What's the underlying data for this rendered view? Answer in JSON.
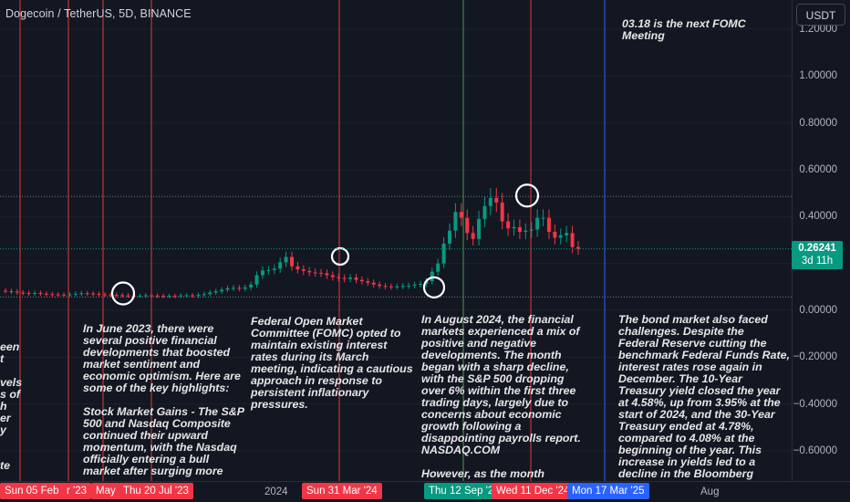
{
  "chart_title": "Dogecoin / TetherUS, 5D, BINANCE",
  "currency_button": "USDT",
  "last_price": {
    "value": "0.26241",
    "countdown": "3d 11h",
    "color": "#089981"
  },
  "colors": {
    "background": "#131722",
    "up": "#089981",
    "down": "#f23645",
    "red_line": "#e53935",
    "green_line": "#43a047",
    "blue_line": "#2962ff",
    "text": "#b2b5be"
  },
  "notes": [
    {
      "id": "fomc-next",
      "text": "03.18 is the next FOMC\nMeeting"
    },
    {
      "id": "june-2023",
      "text": "In June 2023, there were\nseveral positive financial\ndevelopments that boosted\nmarket sentiment and\neconomic optimism. Here are\nsome of the key highlights:\n\nStock Market Gains - The S&P\n500 and Nasdaq Composite\ncontinued their upward\nmomentum, with the Nasdaq\nofficially entering a bull\nmarket after surging more"
    },
    {
      "id": "march-fomc",
      "text": "Federal Open Market\nCommittee (FOMC) opted to\nmaintain existing interest\nrates during its March\nmeeting, indicating a cautious\napproach in response to\npersistent inflationary\npressures."
    },
    {
      "id": "august-2024",
      "text": "In August 2024, the financial\nmarkets experienced a mix of\npositive and negative\ndevelopments. The month\nbegan with a sharp decline,\nwith the S&P 500 dropping\nover 6% within the first three\ntrading days, largely due to\nconcerns about economic\ngrowth following a\ndisappointing payrolls report.\nNASDAQ.COM\n\nHowever, as the month"
    },
    {
      "id": "bond-market",
      "text": "The bond market also faced\nchallenges. Despite the\nFederal Reserve cutting the\nbenchmark Federal Funds Rate,\ninterest rates rose again in\nDecember. The 10-Year\nTreasury yield closed the year\nat 4.58%, up from 3.95% at the\nstart of 2024, and the 30-Year\nTreasury ended at 4.78%,\ncompared to 4.08% at the\nbeginning of the year. This\nincrease in yields led to a\ndecline in the Bloomberg"
    },
    {
      "id": "left-clipped",
      "text": "een\nt\n\nvels\ns of\nh\ner\ny\n\n\nte"
    }
  ],
  "chart_data": {
    "type": "candlestick",
    "title": "Dogecoin / TetherUS, 5D, BINANCE",
    "y_ticks": [
      "1.20000",
      "1.00000",
      "0.80000",
      "0.60000",
      "0.40000",
      "0.20000",
      "0.00000",
      "−0.20000",
      "−0.40000",
      "−0.60000"
    ],
    "y_tick_values": [
      1.2,
      1.0,
      0.8,
      0.6,
      0.4,
      0.2,
      0.0,
      -0.2,
      -0.4,
      -0.6
    ],
    "ylim": [
      -0.72,
      1.24
    ],
    "x_ticks": [
      "2024",
      "Aug"
    ],
    "date_labels": [
      {
        "text": "Sun 05 Feb '23",
        "color": "#f23645"
      },
      {
        "text": "r '23",
        "color": "#f23645"
      },
      {
        "text": "May",
        "color": "#f23645"
      },
      {
        "text": "Thu 20 Jul '23",
        "color": "#f23645"
      },
      {
        "text": "Sun 31 Mar '24",
        "color": "#f23645"
      },
      {
        "text": "Thu 12 Sep '2",
        "color": "#089981"
      },
      {
        "text": "Wed 11 Dec '24",
        "color": "#f23645"
      },
      {
        "text": "Mon 17 Mar '25",
        "color": "#2962ff"
      }
    ],
    "vertical_lines": [
      {
        "date": "Sun 05 Feb '23",
        "color": "#e53935"
      },
      {
        "date": "r '23",
        "color": "#e53935"
      },
      {
        "date": "May",
        "color": "#e53935"
      },
      {
        "date": "Thu 20 Jul '23",
        "color": "#e53935"
      },
      {
        "date": "Sun 31 Mar '24",
        "color": "#e53935"
      },
      {
        "date": "Thu 12 Sep '2",
        "color": "#43a047"
      },
      {
        "date": "Wed 11 Dec '24",
        "color": "#e53935"
      },
      {
        "date": "Mon 17 Mar '25",
        "color": "#2962ff"
      }
    ],
    "horizontal_lines": [
      0.486,
      0.057
    ],
    "circled_points": [
      0.072,
      0.23,
      0.098,
      0.49
    ],
    "series": [
      {
        "close": [
          0.082,
          0.08,
          0.076,
          0.074,
          0.072,
          0.074,
          0.071,
          0.069,
          0.068,
          0.067,
          0.066,
          0.068,
          0.071,
          0.073,
          0.072,
          0.07,
          0.068,
          0.067,
          0.066,
          0.065,
          0.064,
          0.063,
          0.062,
          0.062,
          0.064,
          0.063,
          0.062,
          0.061,
          0.062,
          0.061,
          0.063,
          0.064,
          0.062,
          0.066,
          0.069,
          0.076,
          0.081,
          0.088,
          0.094,
          0.096,
          0.092,
          0.098,
          0.11,
          0.15,
          0.17,
          0.172,
          0.178,
          0.205,
          0.228,
          0.188,
          0.175,
          0.168,
          0.162,
          0.16,
          0.158,
          0.15,
          0.142,
          0.138,
          0.134,
          0.14,
          0.13,
          0.124,
          0.118,
          0.11,
          0.104,
          0.102,
          0.1,
          0.102,
          0.104,
          0.106,
          0.11,
          0.113,
          0.124,
          0.165,
          0.2,
          0.285,
          0.34,
          0.42,
          0.395,
          0.33,
          0.305,
          0.39,
          0.445,
          0.48,
          0.46,
          0.38,
          0.35,
          0.355,
          0.335,
          0.34,
          0.345,
          0.395,
          0.395,
          0.335,
          0.31,
          0.32,
          0.33,
          0.27,
          0.262
        ]
      }
    ]
  }
}
